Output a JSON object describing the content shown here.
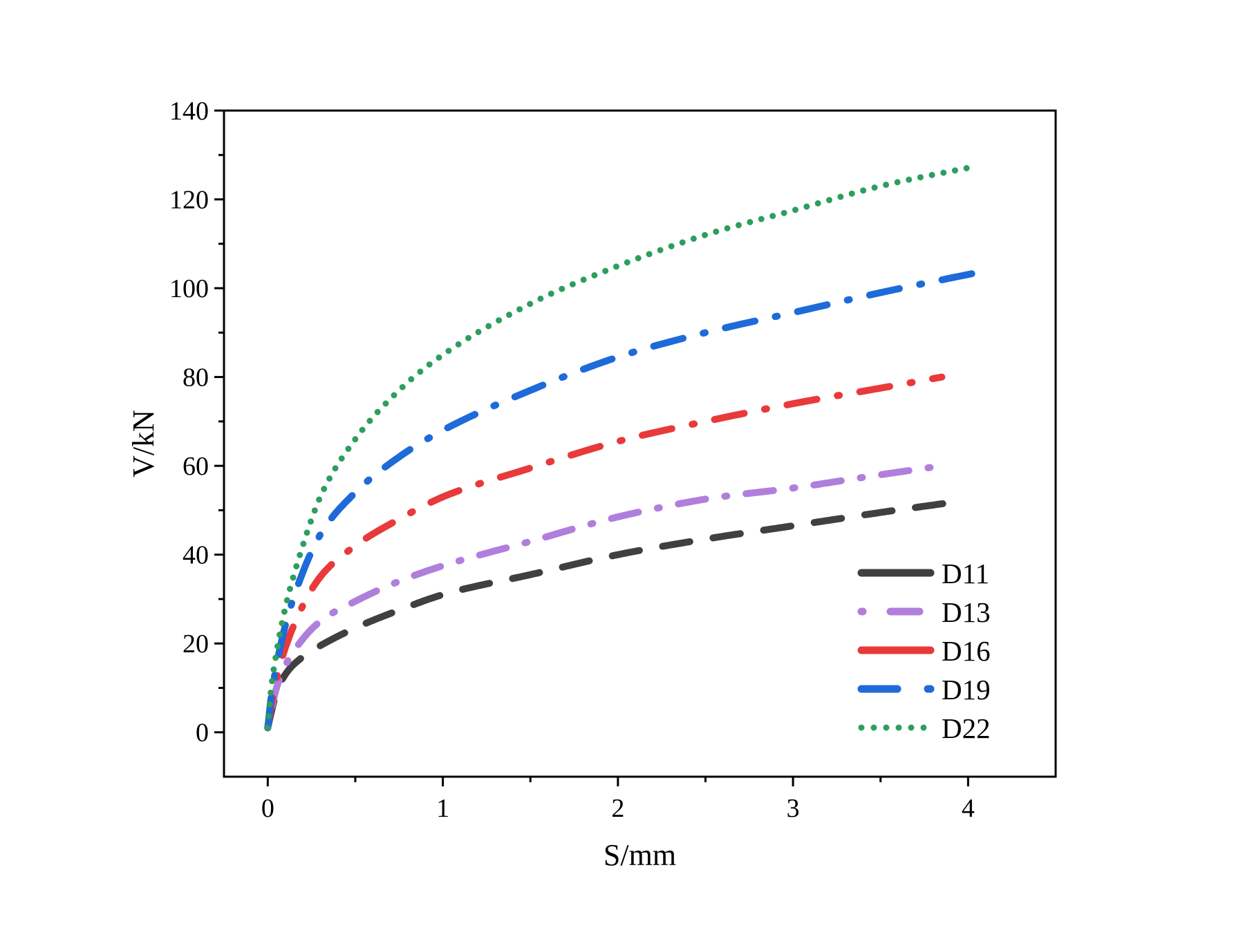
{
  "chart_data": {
    "type": "line",
    "title": "",
    "xlabel": "S/mm",
    "ylabel": "V/kN",
    "xlim": [
      -0.25,
      4.5
    ],
    "ylim": [
      -10,
      140
    ],
    "x_ticks": [
      0,
      1,
      2,
      3,
      4
    ],
    "x_tick_labels": [
      "0",
      "1",
      "2",
      "3",
      "4"
    ],
    "y_ticks": [
      0,
      20,
      40,
      60,
      80,
      100,
      120,
      140
    ],
    "y_tick_labels": [
      "0",
      "20",
      "40",
      "60",
      "80",
      "100",
      "120",
      "140"
    ],
    "grid": false,
    "legend_position": "bottom-right",
    "series": [
      {
        "name": "D11",
        "color": "#404040",
        "line_style": "dash",
        "points": [
          [
            0,
            1
          ],
          [
            0.02,
            4.5
          ],
          [
            0.05,
            9
          ],
          [
            0.1,
            13
          ],
          [
            0.2,
            17
          ],
          [
            0.3,
            19.5
          ],
          [
            0.5,
            23.5
          ],
          [
            0.75,
            27.5
          ],
          [
            1.0,
            31
          ],
          [
            1.5,
            35.5
          ],
          [
            2.0,
            40
          ],
          [
            2.5,
            43.5
          ],
          [
            3.0,
            46.5
          ],
          [
            3.5,
            49.5
          ],
          [
            3.95,
            52
          ]
        ]
      },
      {
        "name": "D13",
        "color": "#b07fdc",
        "line_style": "dot-dash",
        "points": [
          [
            0,
            1
          ],
          [
            0.02,
            5
          ],
          [
            0.05,
            10
          ],
          [
            0.1,
            15
          ],
          [
            0.2,
            21
          ],
          [
            0.3,
            25
          ],
          [
            0.5,
            29.5
          ],
          [
            0.75,
            34
          ],
          [
            1.0,
            37.5
          ],
          [
            1.5,
            43
          ],
          [
            2.0,
            48.5
          ],
          [
            2.5,
            52.5
          ],
          [
            3.0,
            55
          ],
          [
            3.5,
            58
          ],
          [
            3.85,
            60
          ]
        ]
      },
      {
        "name": "D16",
        "color": "#e83a3a",
        "line_style": "dash-dot",
        "points": [
          [
            0,
            1
          ],
          [
            0.02,
            6
          ],
          [
            0.05,
            12
          ],
          [
            0.1,
            19
          ],
          [
            0.2,
            28.5
          ],
          [
            0.3,
            35
          ],
          [
            0.5,
            42
          ],
          [
            0.75,
            48
          ],
          [
            1.0,
            53
          ],
          [
            1.5,
            59.5
          ],
          [
            2.0,
            65.5
          ],
          [
            2.5,
            70
          ],
          [
            3.0,
            74
          ],
          [
            3.5,
            77.5
          ],
          [
            3.85,
            80
          ]
        ]
      },
      {
        "name": "D19",
        "color": "#1e6ad9",
        "line_style": "dash-dot",
        "points": [
          [
            0,
            1
          ],
          [
            0.02,
            8
          ],
          [
            0.05,
            15
          ],
          [
            0.1,
            24
          ],
          [
            0.2,
            36
          ],
          [
            0.3,
            44.5
          ],
          [
            0.5,
            54
          ],
          [
            0.75,
            62
          ],
          [
            1.0,
            68
          ],
          [
            1.5,
            77
          ],
          [
            2.0,
            84.5
          ],
          [
            2.5,
            90
          ],
          [
            3.0,
            94.5
          ],
          [
            3.5,
            99
          ],
          [
            4.05,
            103.5
          ]
        ]
      },
      {
        "name": "D22",
        "color": "#2e9e5e",
        "line_style": "dot",
        "points": [
          [
            0,
            1
          ],
          [
            0.02,
            10
          ],
          [
            0.05,
            18
          ],
          [
            0.1,
            28
          ],
          [
            0.2,
            42
          ],
          [
            0.3,
            53
          ],
          [
            0.5,
            66
          ],
          [
            0.75,
            77
          ],
          [
            1.0,
            85
          ],
          [
            1.5,
            96.5
          ],
          [
            2.0,
            105
          ],
          [
            2.5,
            112
          ],
          [
            3.0,
            117.5
          ],
          [
            3.5,
            123
          ],
          [
            4.05,
            127.5
          ]
        ]
      }
    ]
  }
}
